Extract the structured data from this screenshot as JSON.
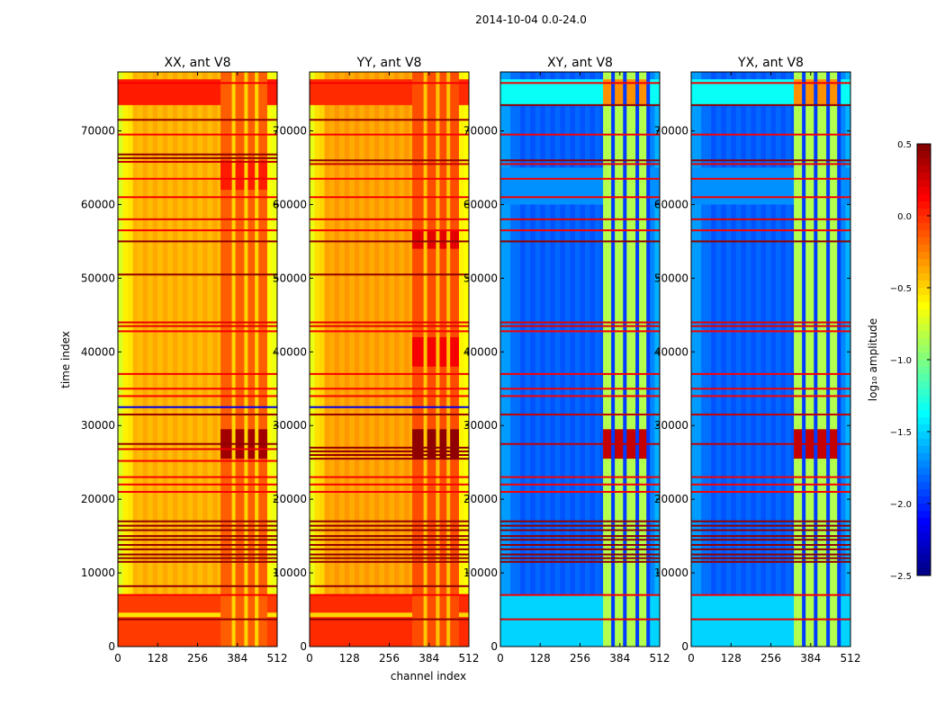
{
  "chart_data": {
    "type": "heatmap",
    "title": "2014-10-04 0.0-24.0",
    "xlabel": "channel index",
    "ylabel": "time index",
    "xlim": [
      0,
      512
    ],
    "ylim": [
      0,
      78000
    ],
    "xticks": [
      "0",
      "128",
      "256",
      "384",
      "512"
    ],
    "xtick_values": [
      0,
      128,
      256,
      384,
      512
    ],
    "yticks": [
      "0",
      "10000",
      "20000",
      "30000",
      "40000",
      "50000",
      "60000",
      "70000"
    ],
    "ytick_values": [
      0,
      10000,
      20000,
      30000,
      40000,
      50000,
      60000,
      70000
    ],
    "colorbar": {
      "label": "log₁₀ amplitude",
      "range": [
        -2.5,
        0.5
      ],
      "colormap": "jet",
      "ticks": [
        "0.5",
        "0.0",
        "−0.5",
        "−1.0",
        "−1.5",
        "−2.0",
        "−2.5"
      ],
      "tick_values": [
        0.5,
        0.0,
        -0.5,
        -1.0,
        -1.5,
        -2.0,
        -2.5
      ]
    },
    "panels": [
      {
        "title": "XX, ant V8",
        "base": -0.4,
        "edge": -0.75,
        "blocks": [
          {
            "t0": 73500,
            "t1": 77000,
            "v": 0.05
          },
          {
            "t0": 0,
            "t1": 7000,
            "v": -0.05
          },
          {
            "t0": 4000,
            "t1": 4600,
            "v": -0.55
          }
        ],
        "rfi": {
          "ch0": 330,
          "ch1": 480,
          "v": -0.15,
          "hot": [
            {
              "t0": 25500,
              "t1": 29500,
              "v": 0.4
            },
            {
              "t0": 62000,
              "t1": 66000,
              "v": 0.05
            }
          ],
          "gaps": [
            372,
            412,
            446
          ]
        },
        "rows": [
          {
            "t": 76500,
            "v": 0.15
          },
          {
            "t": 71500,
            "v": 0.45
          },
          {
            "t": 69500,
            "v": 0.15
          },
          {
            "t": 66800,
            "v": 0.45
          },
          {
            "t": 66300,
            "v": 0.45
          },
          {
            "t": 65800,
            "v": 0.3
          },
          {
            "t": 63500,
            "v": 0.15
          },
          {
            "t": 61000,
            "v": 0.15
          },
          {
            "t": 58000,
            "v": 0.2
          },
          {
            "t": 56500,
            "v": 0.15
          },
          {
            "t": 55000,
            "v": 0.45
          },
          {
            "t": 50500,
            "v": 0.45
          },
          {
            "t": 44000,
            "v": 0.2
          },
          {
            "t": 43500,
            "v": 0.2
          },
          {
            "t": 42800,
            "v": 0.15
          },
          {
            "t": 37000,
            "v": 0.15
          },
          {
            "t": 35000,
            "v": 0.15
          },
          {
            "t": 34000,
            "v": 0.15
          },
          {
            "t": 32500,
            "v": -2.2
          },
          {
            "t": 31500,
            "v": 0.45
          },
          {
            "t": 27500,
            "v": 0.45
          },
          {
            "t": 26800,
            "v": 0.2
          },
          {
            "t": 25200,
            "v": 0.15
          },
          {
            "t": 23000,
            "v": 0.15
          },
          {
            "t": 22000,
            "v": 0.15
          },
          {
            "t": 21000,
            "v": 0.15
          },
          {
            "t": 17000,
            "v": 0.45
          },
          {
            "t": 16400,
            "v": 0.45
          },
          {
            "t": 15800,
            "v": 0.45
          },
          {
            "t": 15000,
            "v": 0.45
          },
          {
            "t": 14500,
            "v": 0.45
          },
          {
            "t": 13800,
            "v": 0.45
          },
          {
            "t": 13200,
            "v": 0.45
          },
          {
            "t": 12500,
            "v": 0.45
          },
          {
            "t": 12000,
            "v": 0.45
          },
          {
            "t": 11500,
            "v": 0.45
          },
          {
            "t": 8200,
            "v": 0.45
          },
          {
            "t": 7000,
            "v": 0.15
          },
          {
            "t": 3700,
            "v": 0.45
          }
        ]
      },
      {
        "title": "YY, ant V8",
        "base": -0.35,
        "edge": -0.7,
        "blocks": [
          {
            "t0": 73500,
            "t1": 77000,
            "v": 0.0
          },
          {
            "t0": 0,
            "t1": 7000,
            "v": 0.0
          },
          {
            "t0": 4000,
            "t1": 4600,
            "v": -0.5
          }
        ],
        "rfi": {
          "ch0": 330,
          "ch1": 480,
          "v": -0.1,
          "hot": [
            {
              "t0": 25500,
              "t1": 29500,
              "v": 0.45
            },
            {
              "t0": 38000,
              "t1": 42000,
              "v": 0.15
            },
            {
              "t0": 54000,
              "t1": 56500,
              "v": 0.2
            }
          ],
          "gaps": [
            372,
            412,
            446
          ]
        },
        "rows": [
          {
            "t": 76500,
            "v": 0.15
          },
          {
            "t": 71500,
            "v": 0.45
          },
          {
            "t": 69500,
            "v": 0.15
          },
          {
            "t": 66000,
            "v": 0.45
          },
          {
            "t": 65500,
            "v": 0.3
          },
          {
            "t": 63500,
            "v": 0.15
          },
          {
            "t": 61000,
            "v": 0.15
          },
          {
            "t": 58000,
            "v": 0.2
          },
          {
            "t": 56500,
            "v": 0.15
          },
          {
            "t": 55000,
            "v": 0.45
          },
          {
            "t": 50500,
            "v": 0.45
          },
          {
            "t": 44000,
            "v": 0.2
          },
          {
            "t": 43500,
            "v": 0.2
          },
          {
            "t": 42800,
            "v": 0.15
          },
          {
            "t": 37000,
            "v": 0.15
          },
          {
            "t": 35000,
            "v": 0.15
          },
          {
            "t": 34000,
            "v": 0.15
          },
          {
            "t": 32500,
            "v": -2.2
          },
          {
            "t": 31500,
            "v": 0.45
          },
          {
            "t": 27000,
            "v": 0.45
          },
          {
            "t": 26500,
            "v": 0.45
          },
          {
            "t": 26000,
            "v": 0.45
          },
          {
            "t": 25500,
            "v": 0.45
          },
          {
            "t": 23000,
            "v": 0.15
          },
          {
            "t": 22000,
            "v": 0.15
          },
          {
            "t": 21000,
            "v": 0.15
          },
          {
            "t": 17000,
            "v": 0.45
          },
          {
            "t": 16400,
            "v": 0.45
          },
          {
            "t": 15800,
            "v": 0.45
          },
          {
            "t": 15000,
            "v": 0.45
          },
          {
            "t": 14500,
            "v": 0.45
          },
          {
            "t": 13800,
            "v": 0.45
          },
          {
            "t": 13200,
            "v": 0.45
          },
          {
            "t": 12500,
            "v": 0.45
          },
          {
            "t": 12000,
            "v": 0.45
          },
          {
            "t": 11500,
            "v": 0.45
          },
          {
            "t": 8200,
            "v": 0.45
          },
          {
            "t": 7000,
            "v": 0.15
          },
          {
            "t": 3700,
            "v": 0.45
          }
        ]
      },
      {
        "title": "XY, ant V8",
        "base": -1.85,
        "edge": -1.6,
        "blocks": [
          {
            "t0": 73500,
            "t1": 77000,
            "v": -1.35
          },
          {
            "t0": 0,
            "t1": 7000,
            "v": -1.5
          },
          {
            "t0": 60000,
            "t1": 65000,
            "v": -1.7
          }
        ],
        "rfi": {
          "ch0": 330,
          "ch1": 480,
          "v": -0.85,
          "hot": [
            {
              "t0": 25500,
              "t1": 29500,
              "v": 0.3
            },
            {
              "t0": 73500,
              "t1": 77000,
              "v": -0.3
            }
          ],
          "gaps": [
            362,
            400,
            440,
            475
          ]
        },
        "rows": [
          {
            "t": 76500,
            "v": 0.15
          },
          {
            "t": 73500,
            "v": 0.45
          },
          {
            "t": 69500,
            "v": 0.15
          },
          {
            "t": 66000,
            "v": 0.45
          },
          {
            "t": 65500,
            "v": 0.2
          },
          {
            "t": 63500,
            "v": 0.15
          },
          {
            "t": 61000,
            "v": 0.15
          },
          {
            "t": 58000,
            "v": 0.2
          },
          {
            "t": 56500,
            "v": 0.15
          },
          {
            "t": 55000,
            "v": 0.45
          },
          {
            "t": 44000,
            "v": 0.2
          },
          {
            "t": 43500,
            "v": 0.2
          },
          {
            "t": 42800,
            "v": 0.15
          },
          {
            "t": 37000,
            "v": 0.15
          },
          {
            "t": 35000,
            "v": 0.15
          },
          {
            "t": 34000,
            "v": 0.15
          },
          {
            "t": 31500,
            "v": 0.3
          },
          {
            "t": 27500,
            "v": 0.3
          },
          {
            "t": 23000,
            "v": 0.15
          },
          {
            "t": 22000,
            "v": 0.15
          },
          {
            "t": 21000,
            "v": 0.15
          },
          {
            "t": 17000,
            "v": 0.45
          },
          {
            "t": 16400,
            "v": 0.45
          },
          {
            "t": 15800,
            "v": 0.45
          },
          {
            "t": 15000,
            "v": 0.45
          },
          {
            "t": 14500,
            "v": 0.45
          },
          {
            "t": 13800,
            "v": 0.45
          },
          {
            "t": 13200,
            "v": 0.45
          },
          {
            "t": 12500,
            "v": 0.45
          },
          {
            "t": 12000,
            "v": 0.45
          },
          {
            "t": 11500,
            "v": 0.45
          },
          {
            "t": 7000,
            "v": 0.15
          },
          {
            "t": 3700,
            "v": 0.2
          }
        ]
      },
      {
        "title": "YX, ant V8",
        "base": -1.85,
        "edge": -1.6,
        "blocks": [
          {
            "t0": 73500,
            "t1": 77000,
            "v": -1.35
          },
          {
            "t0": 0,
            "t1": 7000,
            "v": -1.5
          },
          {
            "t0": 60000,
            "t1": 65000,
            "v": -1.7
          }
        ],
        "rfi": {
          "ch0": 330,
          "ch1": 480,
          "v": -0.85,
          "hot": [
            {
              "t0": 25500,
              "t1": 29500,
              "v": 0.3
            },
            {
              "t0": 73500,
              "t1": 77000,
              "v": -0.3
            }
          ],
          "gaps": [
            362,
            400,
            440,
            475
          ]
        },
        "rows": [
          {
            "t": 76500,
            "v": 0.15
          },
          {
            "t": 73500,
            "v": 0.45
          },
          {
            "t": 69500,
            "v": 0.15
          },
          {
            "t": 66000,
            "v": 0.45
          },
          {
            "t": 65500,
            "v": 0.2
          },
          {
            "t": 63500,
            "v": 0.15
          },
          {
            "t": 61000,
            "v": 0.15
          },
          {
            "t": 58000,
            "v": 0.2
          },
          {
            "t": 56500,
            "v": 0.15
          },
          {
            "t": 55000,
            "v": 0.45
          },
          {
            "t": 44000,
            "v": 0.2
          },
          {
            "t": 43500,
            "v": 0.2
          },
          {
            "t": 42800,
            "v": 0.15
          },
          {
            "t": 37000,
            "v": 0.15
          },
          {
            "t": 35000,
            "v": 0.15
          },
          {
            "t": 34000,
            "v": 0.15
          },
          {
            "t": 31500,
            "v": 0.3
          },
          {
            "t": 27500,
            "v": 0.3
          },
          {
            "t": 23000,
            "v": 0.15
          },
          {
            "t": 22000,
            "v": 0.15
          },
          {
            "t": 21000,
            "v": 0.15
          },
          {
            "t": 17000,
            "v": 0.45
          },
          {
            "t": 16400,
            "v": 0.45
          },
          {
            "t": 15800,
            "v": 0.45
          },
          {
            "t": 15000,
            "v": 0.45
          },
          {
            "t": 14500,
            "v": 0.45
          },
          {
            "t": 13800,
            "v": 0.45
          },
          {
            "t": 13200,
            "v": 0.45
          },
          {
            "t": 12500,
            "v": 0.45
          },
          {
            "t": 12000,
            "v": 0.45
          },
          {
            "t": 11500,
            "v": 0.45
          },
          {
            "t": 7000,
            "v": 0.15
          },
          {
            "t": 3700,
            "v": 0.2
          }
        ]
      }
    ]
  }
}
